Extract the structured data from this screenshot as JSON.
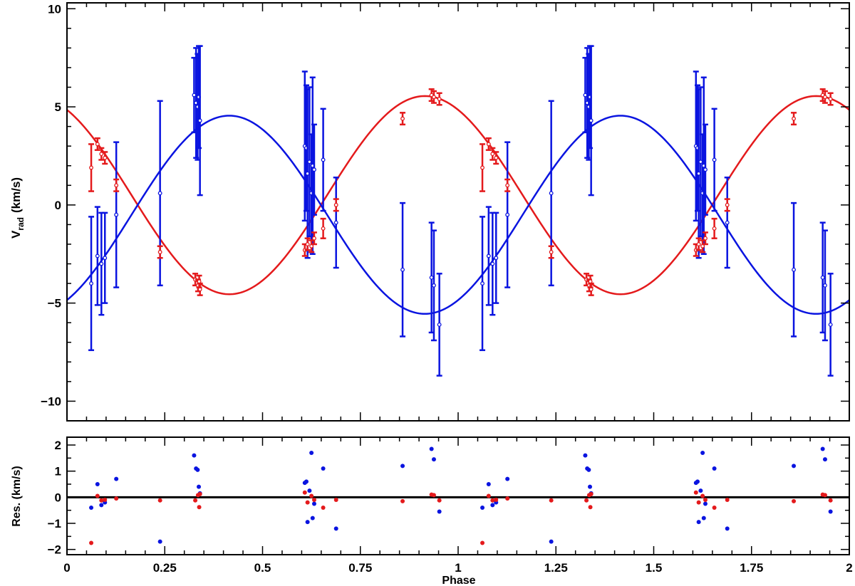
{
  "chart_data": [
    {
      "type": "scatter",
      "panel": "radial-velocity",
      "ylabel_main": "V",
      "ylabel_sub": "rad",
      "ylabel_unit": "(km/s)",
      "xlabel": "",
      "xlim": [
        0,
        2
      ],
      "ylim": [
        -11,
        10.3
      ],
      "yticks": [
        -10,
        -5,
        0,
        5,
        10
      ],
      "ytick_labels": [
        "−10",
        "−5",
        "0",
        "5",
        "10"
      ],
      "grid": false,
      "colors": {
        "primary": "#e41a1c",
        "secondary": "#0a14e0"
      },
      "curves": [
        {
          "component": "primary",
          "amplitude": 5.05,
          "offset": 0.5,
          "phase_of_minimum": 0.415
        },
        {
          "component": "secondary",
          "amplitude": 5.05,
          "offset": -0.5,
          "phase_of_minimum": 0.915
        }
      ],
      "series": [
        {
          "component": "primary",
          "phase": [
            0.062,
            0.078,
            0.088,
            0.097,
            0.126,
            0.238,
            0.328,
            0.335,
            0.338,
            0.34,
            0.608,
            0.615,
            0.625,
            0.632,
            0.655,
            0.688,
            0.858,
            0.932,
            0.938,
            0.952
          ],
          "rv": [
            1.9,
            3.1,
            2.6,
            2.4,
            1.0,
            -2.4,
            -3.8,
            -4.1,
            -3.9,
            -4.3,
            -2.3,
            -2.0,
            -2.1,
            -1.7,
            -1.2,
            0.0,
            4.4,
            5.6,
            5.5,
            5.4
          ],
          "err": [
            1.2,
            0.3,
            0.3,
            0.3,
            0.3,
            0.3,
            0.3,
            0.3,
            0.3,
            0.3,
            0.3,
            0.3,
            0.3,
            0.3,
            0.5,
            0.3,
            0.3,
            0.3,
            0.3,
            0.3
          ]
        },
        {
          "component": "secondary",
          "phase": [
            0.062,
            0.078,
            0.088,
            0.097,
            0.126,
            0.238,
            0.325,
            0.33,
            0.334,
            0.337,
            0.34,
            0.608,
            0.612,
            0.615,
            0.62,
            0.625,
            0.628,
            0.632,
            0.655,
            0.688,
            0.858,
            0.932,
            0.938,
            0.952
          ],
          "rv": [
            -4.0,
            -2.6,
            -3.0,
            -2.7,
            -0.5,
            0.6,
            5.6,
            5.2,
            5.0,
            5.5,
            4.3,
            3.0,
            2.9,
            1.6,
            2.2,
            0.6,
            2.0,
            1.8,
            2.3,
            -0.9,
            -3.3,
            -3.7,
            -4.1,
            -6.1
          ],
          "err": [
            3.4,
            2.5,
            2.6,
            2.3,
            3.7,
            4.7,
            1.9,
            2.8,
            2.7,
            2.6,
            3.8,
            3.8,
            3.2,
            4.3,
            3.8,
            3.0,
            4.5,
            2.3,
            2.6,
            2.3,
            3.4,
            2.8,
            2.8,
            2.6
          ]
        }
      ]
    },
    {
      "type": "scatter",
      "panel": "residuals",
      "ylabel": "Res. (km/s)",
      "xlabel": "Phase",
      "xlim": [
        0,
        2
      ],
      "ylim": [
        -2.2,
        2.3
      ],
      "xticks": [
        0,
        0.25,
        0.5,
        0.75,
        1,
        1.25,
        1.5,
        1.75,
        2
      ],
      "xtick_labels": [
        "0",
        "0.25",
        "0.5",
        "0.75",
        "1",
        "1.25",
        "1.5",
        "1.75",
        "2"
      ],
      "yticks": [
        -2,
        -1,
        0,
        1,
        2
      ],
      "ytick_labels": [
        "−2",
        "−1",
        "0",
        "1",
        "2"
      ],
      "zero_line": 0,
      "series": [
        {
          "component": "primary",
          "phase": [
            0.062,
            0.078,
            0.088,
            0.097,
            0.126,
            0.238,
            0.328,
            0.335,
            0.338,
            0.34,
            0.608,
            0.615,
            0.625,
            0.632,
            0.655,
            0.688,
            0.858,
            0.932,
            0.938,
            0.952
          ],
          "res": [
            -1.75,
            0.05,
            -0.12,
            -0.1,
            -0.05,
            -0.12,
            -0.12,
            0.08,
            -0.38,
            0.12,
            0.18,
            -0.2,
            0.05,
            -0.1,
            -0.4,
            -0.1,
            -0.15,
            0.1,
            0.08,
            -0.12
          ]
        },
        {
          "component": "secondary",
          "phase": [
            0.062,
            0.078,
            0.088,
            0.097,
            0.126,
            0.238,
            0.325,
            0.33,
            0.334,
            0.337,
            0.34,
            0.608,
            0.612,
            0.615,
            0.62,
            0.625,
            0.628,
            0.632,
            0.655,
            0.688,
            0.858,
            0.932,
            0.938,
            0.952
          ],
          "res": [
            -0.4,
            0.5,
            -0.3,
            -0.2,
            0.7,
            -1.7,
            1.6,
            1.1,
            1.05,
            0.4,
            0.15,
            0.55,
            0.6,
            -0.95,
            0.25,
            1.7,
            -0.8,
            -0.25,
            1.1,
            -1.2,
            1.2,
            1.85,
            1.45,
            -0.55
          ]
        }
      ]
    }
  ]
}
